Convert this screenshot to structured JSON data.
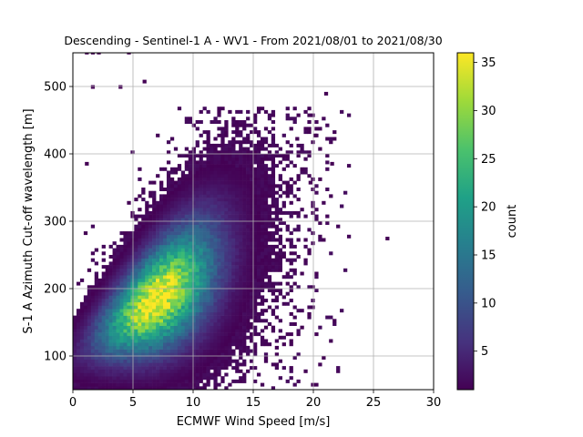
{
  "chart_data": {
    "type": "heatmap",
    "title": "Descending - Sentinel-1 A - WV1 - From 2021/08/01 to 2021/08/30",
    "xlabel": "ECMWF Wind Speed [m/s]",
    "ylabel": "S-1 A Azimuth Cut-off wavelength [m]",
    "xlim": [
      0,
      30
    ],
    "ylim": [
      50,
      550
    ],
    "xticks": [
      "0",
      "5",
      "10",
      "15",
      "20",
      "25",
      "30"
    ],
    "yticks": [
      "100",
      "200",
      "300",
      "400",
      "500"
    ],
    "xtick_values": [
      0,
      5,
      10,
      15,
      20,
      25,
      30
    ],
    "ytick_values": [
      100,
      200,
      300,
      400,
      500
    ],
    "grid": true,
    "colormap": "viridis",
    "colorbar": {
      "label": "count",
      "range": [
        1,
        36
      ],
      "ticks": [
        "5",
        "10",
        "15",
        "20",
        "25",
        "30",
        "35"
      ],
      "tick_values": [
        5,
        10,
        15,
        20,
        25,
        30,
        35
      ]
    },
    "bin_size": {
      "x": 0.3,
      "y": 5
    },
    "density_model": {
      "peak_count": 36,
      "core": {
        "x_center": 7,
        "y_center": 185,
        "x_sd": 3.2,
        "y_sd": 40,
        "slope_m_per_ms": 11.5
      },
      "sample_cells": [
        {
          "x": 7.0,
          "y": 185,
          "count": 36
        },
        {
          "x": 6.0,
          "y": 175,
          "count": 30
        },
        {
          "x": 5.0,
          "y": 160,
          "count": 22
        },
        {
          "x": 9.0,
          "y": 210,
          "count": 24
        },
        {
          "x": 3.5,
          "y": 130,
          "count": 10
        },
        {
          "x": 12.0,
          "y": 250,
          "count": 8
        },
        {
          "x": 15.0,
          "y": 290,
          "count": 3
        },
        {
          "x": 18.0,
          "y": 360,
          "count": 1
        }
      ],
      "outliers": [
        {
          "x": 1.0,
          "y": 548
        },
        {
          "x": 1.5,
          "y": 548
        },
        {
          "x": 2.0,
          "y": 548
        },
        {
          "x": 4.5,
          "y": 548
        },
        {
          "x": 1.5,
          "y": 497
        },
        {
          "x": 3.8,
          "y": 497
        },
        {
          "x": 5.8,
          "y": 505
        },
        {
          "x": 20.9,
          "y": 487
        },
        {
          "x": 26.0,
          "y": 272
        },
        {
          "x": 1.0,
          "y": 383
        },
        {
          "x": 18.5,
          "y": 420
        },
        {
          "x": 21.4,
          "y": 383
        },
        {
          "x": 20.0,
          "y": 425
        },
        {
          "x": 19.6,
          "y": 355
        }
      ]
    }
  }
}
